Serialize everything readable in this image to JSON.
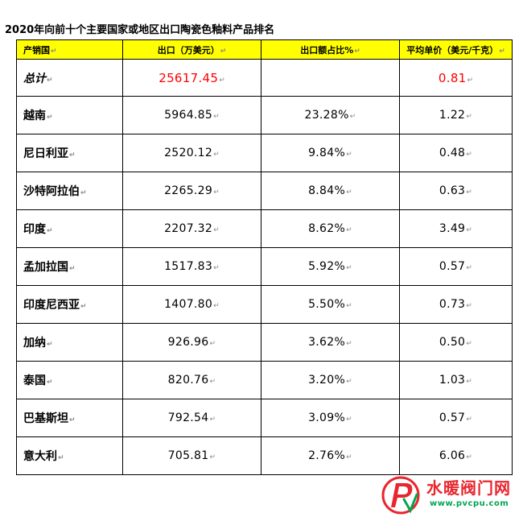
{
  "title": "2020年向前十个主要国家或地区出口陶瓷色釉料产品排名",
  "mark": "↵",
  "table": {
    "headers": [
      "产销国",
      "出口（万美元）",
      "出口额占比%",
      "平均单价（美元/千克）"
    ],
    "total": {
      "name": "总计",
      "export": "25617.45",
      "share": "",
      "price": "0.81"
    },
    "rows": [
      {
        "name": "越南",
        "export": "5964.85",
        "share": "23.28%",
        "price": "1.22"
      },
      {
        "name": "尼日利亚",
        "export": "2520.12",
        "share": "9.84%",
        "price": "0.48"
      },
      {
        "name": "沙特阿拉伯",
        "export": "2265.29",
        "share": "8.84%",
        "price": "0.63"
      },
      {
        "name": "印度",
        "export": "2207.32",
        "share": "8.62%",
        "price": "3.49"
      },
      {
        "name": "孟加拉国",
        "export": "1517.83",
        "share": "5.92%",
        "price": "0.57"
      },
      {
        "name": "印度尼西亚",
        "export": "1407.80",
        "share": "5.50%",
        "price": "0.73"
      },
      {
        "name": "加纳",
        "export": "926.96",
        "share": "3.62%",
        "price": "0.50"
      },
      {
        "name": "泰国",
        "export": "820.76",
        "share": "3.20%",
        "price": "1.03"
      },
      {
        "name": "巴基斯坦",
        "export": "792.54",
        "share": "3.09%",
        "price": "0.57"
      },
      {
        "name": "意大利",
        "export": "705.81",
        "share": "2.76%",
        "price": "6.06"
      }
    ]
  },
  "watermark": {
    "name": "水暖阀门网",
    "url": "www.pvcpu.com",
    "colors": {
      "red": "#e8262e",
      "green": "#00a650"
    },
    "icon": "pv-logo-icon"
  }
}
